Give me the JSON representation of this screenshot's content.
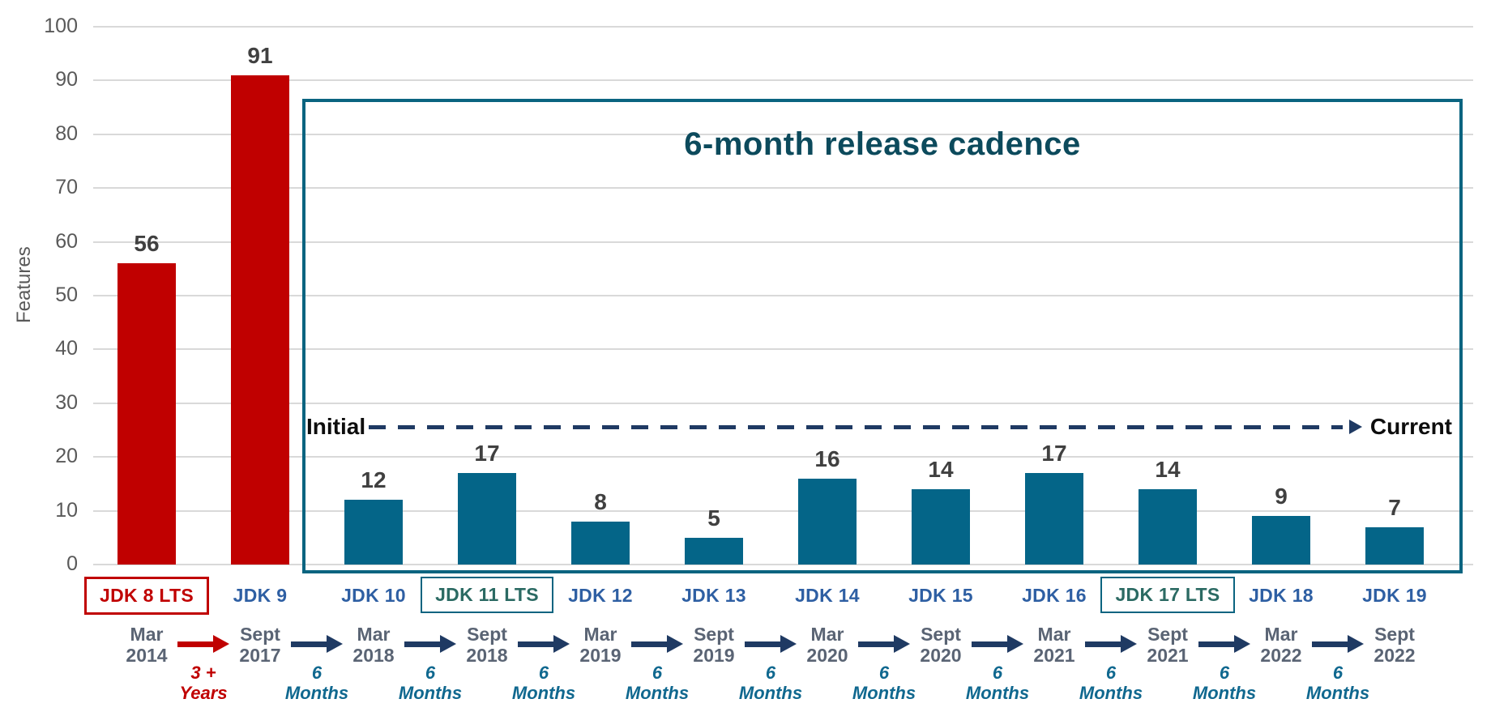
{
  "colors": {
    "red": "#c00000",
    "teal": "#046588",
    "navy": "#1f3a63",
    "cadence_border": "#0a6480",
    "cadence_title": "#0c4a5c",
    "jdk_label_blue": "#2e5fa3",
    "lts_teal_text": "#2b6a63",
    "date_slate": "#5a6474",
    "months_teal": "#10688f",
    "gridline": "#d9d9d9",
    "tick_text": "#595959",
    "value_text": "#404040"
  },
  "annotations": {
    "cadence_title": "6-month release cadence",
    "trend_start": "Initial",
    "trend_end": "Current"
  },
  "chart_data": {
    "type": "bar",
    "title": "",
    "xlabel": "",
    "ylabel": "Features",
    "ylim": [
      0,
      100
    ],
    "yticks": [
      0,
      10,
      20,
      30,
      40,
      50,
      60,
      70,
      80,
      90,
      100
    ],
    "grid": "horizontal",
    "legend": "none",
    "categories": [
      "JDK 8 LTS",
      "JDK 9",
      "JDK 10",
      "JDK 11 LTS",
      "JDK 12",
      "JDK 13",
      "JDK 14",
      "JDK 15",
      "JDK 16",
      "JDK 17 LTS",
      "JDK 18",
      "JDK 19"
    ],
    "values": [
      56,
      91,
      12,
      17,
      8,
      5,
      16,
      14,
      17,
      14,
      9,
      7
    ],
    "releases": [
      {
        "label": "JDK 8 LTS",
        "lts": true,
        "color": "red",
        "value": 56,
        "month": "Mar",
        "year": "2014"
      },
      {
        "label": "JDK 9",
        "lts": false,
        "color": "red",
        "value": 91,
        "month": "Sept",
        "year": "2017"
      },
      {
        "label": "JDK 10",
        "lts": false,
        "color": "teal",
        "value": 12,
        "month": "Mar",
        "year": "2018"
      },
      {
        "label": "JDK 11 LTS",
        "lts": true,
        "color": "teal",
        "value": 17,
        "month": "Sept",
        "year": "2018"
      },
      {
        "label": "JDK 12",
        "lts": false,
        "color": "teal",
        "value": 8,
        "month": "Mar",
        "year": "2019"
      },
      {
        "label": "JDK 13",
        "lts": false,
        "color": "teal",
        "value": 5,
        "month": "Sept",
        "year": "2019"
      },
      {
        "label": "JDK 14",
        "lts": false,
        "color": "teal",
        "value": 16,
        "month": "Mar",
        "year": "2020"
      },
      {
        "label": "JDK 15",
        "lts": false,
        "color": "teal",
        "value": 14,
        "month": "Sept",
        "year": "2020"
      },
      {
        "label": "JDK 16",
        "lts": false,
        "color": "teal",
        "value": 17,
        "month": "Mar",
        "year": "2021"
      },
      {
        "label": "JDK 17 LTS",
        "lts": true,
        "color": "teal",
        "value": 14,
        "month": "Sept",
        "year": "2021"
      },
      {
        "label": "JDK 18",
        "lts": false,
        "color": "teal",
        "value": 9,
        "month": "Mar",
        "year": "2022"
      },
      {
        "label": "JDK 19",
        "lts": false,
        "color": "teal",
        "value": 7,
        "month": "Sept",
        "year": "2022"
      }
    ],
    "gaps": [
      {
        "line1": "3 +",
        "line2": "Years",
        "color": "red",
        "arrow": "red"
      },
      {
        "line1": "6",
        "line2": "Months",
        "color": "teal",
        "arrow": "navy"
      },
      {
        "line1": "6",
        "line2": "Months",
        "color": "teal",
        "arrow": "navy"
      },
      {
        "line1": "6",
        "line2": "Months",
        "color": "teal",
        "arrow": "navy"
      },
      {
        "line1": "6",
        "line2": "Months",
        "color": "teal",
        "arrow": "navy"
      },
      {
        "line1": "6",
        "line2": "Months",
        "color": "teal",
        "arrow": "navy"
      },
      {
        "line1": "6",
        "line2": "Months",
        "color": "teal",
        "arrow": "navy"
      },
      {
        "line1": "6",
        "line2": "Months",
        "color": "teal",
        "arrow": "navy"
      },
      {
        "line1": "6",
        "line2": "Months",
        "color": "teal",
        "arrow": "navy"
      },
      {
        "line1": "6",
        "line2": "Months",
        "color": "teal",
        "arrow": "navy"
      },
      {
        "line1": "6",
        "line2": "Months",
        "color": "teal",
        "arrow": "navy"
      }
    ]
  }
}
